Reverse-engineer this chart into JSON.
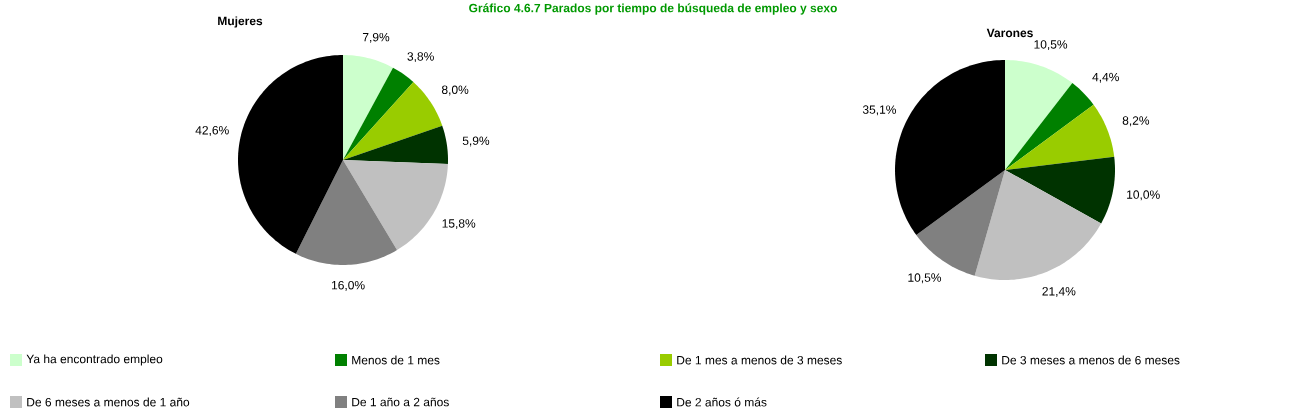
{
  "chart_data": [
    {
      "type": "pie",
      "title": "Mujeres",
      "annotations": [
        "Gráfico 4.6.7 Parados por tiempo de búsqueda de empleo y sexo"
      ],
      "categories": [
        "Ya ha encontrado empleo",
        "Menos de 1 mes",
        "De 1 mes a menos de 3 meses",
        "De 3 meses a menos de 6 meses",
        "De 6 meses a menos de 1 año",
        "De 1 año a 2 años",
        "De 2 años ó más"
      ],
      "values": [
        7.9,
        3.8,
        8.0,
        5.9,
        15.8,
        16.0,
        42.6
      ],
      "value_labels": [
        "7,9%",
        "3,8%",
        "8,0%",
        "5,9%",
        "15,8%",
        "16,0%",
        "42,6%"
      ],
      "colors": [
        "#ccffcc",
        "#008000",
        "#99cc00",
        "#003300",
        "#c0c0c0",
        "#808080",
        "#000000"
      ],
      "legend": "bottom"
    },
    {
      "type": "pie",
      "title": "Varones",
      "categories": [
        null,
        null,
        null,
        null,
        null,
        null,
        null
      ],
      "values": [
        10.5,
        4.4,
        8.2,
        10.0,
        21.4,
        10.5,
        35.1
      ],
      "value_labels": [
        "10,5%",
        "4,4%",
        "8,2%",
        "10,0%",
        "21,4%",
        "10,5%",
        "35,1%"
      ],
      "colors": [
        "#ccffcc",
        "#008000",
        "#99cc00",
        "#003300",
        "#c0c0c0",
        "#808080",
        "#000000"
      ]
    }
  ]
}
